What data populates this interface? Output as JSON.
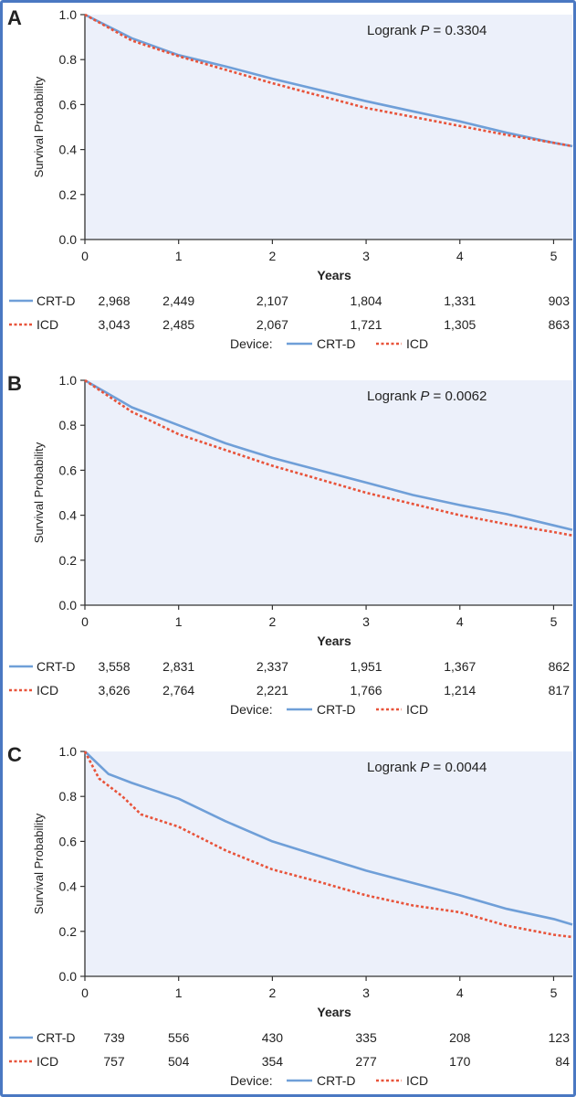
{
  "chart_data": [
    {
      "type": "line",
      "panel_label": "A",
      "annotation_prefix": "Logrank ",
      "annotation_p": "P",
      "annotation_value": " = 0.3304",
      "ylabel": "Survival Probability",
      "xlabel": "Years",
      "xlim": [
        0,
        5.2
      ],
      "ylim": [
        0,
        1
      ],
      "x_ticks": [
        "0",
        "1",
        "2",
        "3",
        "4",
        "5"
      ],
      "y_ticks": [
        "0.0",
        "0.2",
        "0.4",
        "0.6",
        "0.8",
        "1.0"
      ],
      "series": [
        {
          "name": "CRT-D",
          "color": "#6f9fd8",
          "style": "solid",
          "x": [
            0,
            0.5,
            1,
            1.5,
            2,
            2.5,
            3,
            3.5,
            4,
            4.5,
            5,
            5.2
          ],
          "y": [
            1.0,
            0.895,
            0.82,
            0.77,
            0.715,
            0.665,
            0.615,
            0.57,
            0.525,
            0.475,
            0.43,
            0.415
          ]
        },
        {
          "name": "ICD",
          "color": "#e8533a",
          "style": "dashed",
          "x": [
            0,
            0.5,
            1,
            1.5,
            2,
            2.5,
            3,
            3.5,
            4,
            4.5,
            5,
            5.2
          ],
          "y": [
            1.0,
            0.885,
            0.815,
            0.755,
            0.695,
            0.64,
            0.585,
            0.545,
            0.505,
            0.465,
            0.43,
            0.415
          ]
        }
      ],
      "risk_table": [
        {
          "name": "CRT-D",
          "values": [
            "2,968",
            "2,449",
            "2,107",
            "1,804",
            "1,331",
            "903"
          ]
        },
        {
          "name": "ICD",
          "values": [
            "3,043",
            "2,485",
            "2,067",
            "1,721",
            "1,305",
            "863"
          ]
        }
      ]
    },
    {
      "type": "line",
      "panel_label": "B",
      "annotation_prefix": "Logrank ",
      "annotation_p": "P",
      "annotation_value": " = 0.0062",
      "ylabel": "Survival Probability",
      "xlabel": "Years",
      "xlim": [
        0,
        5.2
      ],
      "ylim": [
        0,
        1
      ],
      "x_ticks": [
        "0",
        "1",
        "2",
        "3",
        "4",
        "5"
      ],
      "y_ticks": [
        "0.0",
        "0.2",
        "0.4",
        "0.6",
        "0.8",
        "1.0"
      ],
      "series": [
        {
          "name": "CRT-D",
          "color": "#6f9fd8",
          "style": "solid",
          "x": [
            0,
            0.5,
            1,
            1.5,
            2,
            2.5,
            3,
            3.5,
            4,
            4.5,
            5,
            5.2
          ],
          "y": [
            1.0,
            0.88,
            0.8,
            0.72,
            0.655,
            0.6,
            0.545,
            0.49,
            0.445,
            0.405,
            0.355,
            0.335
          ]
        },
        {
          "name": "ICD",
          "color": "#e8533a",
          "style": "dashed",
          "x": [
            0,
            0.5,
            1,
            1.5,
            2,
            2.5,
            3,
            3.5,
            4,
            4.5,
            5,
            5.2
          ],
          "y": [
            1.0,
            0.86,
            0.76,
            0.69,
            0.62,
            0.56,
            0.5,
            0.45,
            0.4,
            0.36,
            0.325,
            0.31
          ]
        }
      ],
      "risk_table": [
        {
          "name": "CRT-D",
          "values": [
            "3,558",
            "2,831",
            "2,337",
            "1,951",
            "1,367",
            "862"
          ]
        },
        {
          "name": "ICD",
          "values": [
            "3,626",
            "2,764",
            "2,221",
            "1,766",
            "1,214",
            "817"
          ]
        }
      ]
    },
    {
      "type": "line",
      "panel_label": "C",
      "annotation_prefix": "Logrank ",
      "annotation_p": "P",
      "annotation_value": " = 0.0044",
      "ylabel": "Survival Probability",
      "xlabel": "Years",
      "xlim": [
        0,
        5.2
      ],
      "ylim": [
        0,
        1
      ],
      "x_ticks": [
        "0",
        "1",
        "2",
        "3",
        "4",
        "5"
      ],
      "y_ticks": [
        "0.0",
        "0.2",
        "0.4",
        "0.6",
        "0.8",
        "1.0"
      ],
      "series": [
        {
          "name": "CRT-D",
          "color": "#6f9fd8",
          "style": "solid",
          "x": [
            0,
            0.25,
            0.5,
            1,
            1.5,
            2,
            2.5,
            3,
            3.5,
            4,
            4.5,
            5,
            5.2
          ],
          "y": [
            1.0,
            0.9,
            0.86,
            0.79,
            0.69,
            0.6,
            0.535,
            0.47,
            0.415,
            0.36,
            0.3,
            0.255,
            0.23
          ]
        },
        {
          "name": "ICD",
          "color": "#e8533a",
          "style": "dashed",
          "x": [
            0,
            0.15,
            0.4,
            0.6,
            1,
            1.5,
            2,
            2.5,
            3,
            3.5,
            4,
            4.5,
            5,
            5.2
          ],
          "y": [
            1.0,
            0.88,
            0.8,
            0.72,
            0.665,
            0.56,
            0.475,
            0.42,
            0.36,
            0.315,
            0.285,
            0.225,
            0.185,
            0.175
          ]
        }
      ],
      "risk_table": [
        {
          "name": "CRT-D",
          "values": [
            "739",
            "556",
            "430",
            "335",
            "208",
            "123"
          ]
        },
        {
          "name": "ICD",
          "values": [
            "757",
            "504",
            "354",
            "277",
            "170",
            "84"
          ]
        }
      ]
    }
  ],
  "legend": {
    "title": "Device:",
    "items": [
      {
        "name": "CRT-D",
        "color": "#6f9fd8",
        "style": "solid"
      },
      {
        "name": "ICD",
        "color": "#e8533a",
        "style": "dashed"
      }
    ]
  },
  "colors": {
    "frame": "#4a78c2",
    "plot_background": "#ecf0fa",
    "axis": "#333333"
  }
}
